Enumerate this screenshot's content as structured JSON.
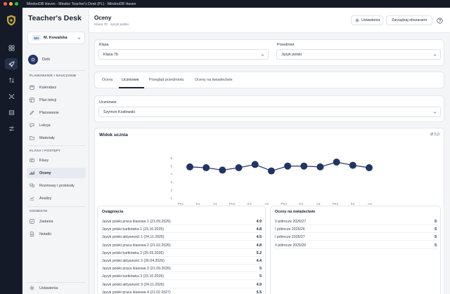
{
  "window": {
    "title": "MindooDB Haven - Mindoo Teacher's Desk (PL) - MindooDB Haven",
    "traffic_colors": [
      "#ff5f57",
      "#febc2e",
      "#28c840"
    ]
  },
  "rail": {
    "icons": [
      "shield-logo",
      "dashboard-icon",
      "rocket-icon",
      "swap-icon",
      "network-icon",
      "database-icon",
      "sliders-icon"
    ],
    "active": "rocket-icon"
  },
  "sidebar": {
    "brand_main": "Teacher's ",
    "brand_bold": "Desk",
    "user_initials": "MK",
    "user_name": "M. Kowalska",
    "today_label": "Dziś",
    "sections": [
      {
        "label": "PLANOWANIE I NAUCZANIE",
        "items": [
          {
            "label": "Kalendarz",
            "icon": "calendar-icon"
          },
          {
            "label": "Plan lekcji",
            "icon": "timetable-icon"
          },
          {
            "label": "Planowanie",
            "icon": "pencil-icon"
          },
          {
            "label": "Lekcja",
            "icon": "chat-icon"
          },
          {
            "label": "Materiały",
            "icon": "folder-icon"
          }
        ]
      },
      {
        "label": "KLASA I POSTĘPY",
        "items": [
          {
            "label": "Klasy",
            "icon": "classes-icon"
          },
          {
            "label": "Oceny",
            "icon": "grades-icon",
            "active": true
          },
          {
            "label": "Rozmowy i protokoły",
            "icon": "conversations-icon"
          },
          {
            "label": "Analizy",
            "icon": "analytics-icon"
          }
        ]
      },
      {
        "label": "OSOBISTE",
        "items": [
          {
            "label": "Zadania",
            "icon": "tasks-icon"
          },
          {
            "label": "Notatki",
            "icon": "notes-icon"
          }
        ]
      }
    ],
    "settings_label": "Ustawienia"
  },
  "header": {
    "title": "Oceny",
    "breadcrumb": "Klasa 7b · Język polski",
    "settings_button": "Ustawienia",
    "manage_button": "Zarządzaj obszarami"
  },
  "filters": {
    "class_label": "Klasa",
    "class_value": "Klasa 7b",
    "subject_label": "Przedmiot",
    "subject_value": "Język polski"
  },
  "tabs": [
    {
      "label": "Oceny"
    },
    {
      "label": "Uczniowie",
      "active": true
    },
    {
      "label": "Przegląd przedmiotu"
    },
    {
      "label": "Oceny na świadectwie"
    }
  ],
  "student": {
    "label": "Uczniowie",
    "value": "Szymon Kozłowski"
  },
  "student_view": {
    "title": "Widok ucznia",
    "average": "Ø 5,0"
  },
  "chart_data": {
    "type": "line",
    "x": [
      "PK1",
      "K1",
      "A1",
      "PK2",
      "K2",
      "A2",
      "PK3",
      "K3",
      "A3",
      "PK4",
      "K4",
      "A4"
    ],
    "series": [
      {
        "values": [
          4.9,
          4.8,
          4.5,
          4.8,
          5.2,
          4.4,
          5,
          5,
          4.9,
          5.5,
          5.1,
          4.8
        ]
      }
    ],
    "y_ticks": [
      1,
      2,
      3,
      4,
      5,
      6
    ],
    "ylim": [
      0.6,
      6.2
    ],
    "line_color": "#1f3566",
    "point_color": "#1f3566"
  },
  "achievements": {
    "title": "Osiągnięcia",
    "rows": [
      {
        "label": "Język polski praca klasowa 1 (21.09.2025)",
        "value": "4.9"
      },
      {
        "label": "Język polski kartkówka 1 (23.10.2025)",
        "value": "4.8"
      },
      {
        "label": "Język polski aktywność 1 (24.11.2025)",
        "value": "4.5"
      },
      {
        "label": "Język polski praca klasowa 2 (21.02.2026)",
        "value": "4.8"
      },
      {
        "label": "Język polski kartkówka 2 (25.03.2026)",
        "value": "5.2"
      },
      {
        "label": "Język polski aktywność 2 (26.04.2026)",
        "value": "4.4"
      },
      {
        "label": "Język polski praca klasowa 3 (21.09.2026)",
        "value": "5"
      },
      {
        "label": "Język polski kartkówka 3 (23.10.2026)",
        "value": "5"
      },
      {
        "label": "Język polski aktywność 3 (24.11.2026)",
        "value": "4.9"
      },
      {
        "label": "Język polski praca klasowa 4 (21.02.2027)",
        "value": "5.5"
      }
    ]
  },
  "certificate": {
    "title": "Oceny na świadectwie",
    "rows": [
      {
        "label": "II półrocze 2026/27",
        "value": "5"
      },
      {
        "label": "I półrocze 2025/26",
        "value": "5"
      },
      {
        "label": "I półrocze 2026/27",
        "value": "5"
      },
      {
        "label": "II półrocze 2025/26",
        "value": "5"
      }
    ]
  }
}
